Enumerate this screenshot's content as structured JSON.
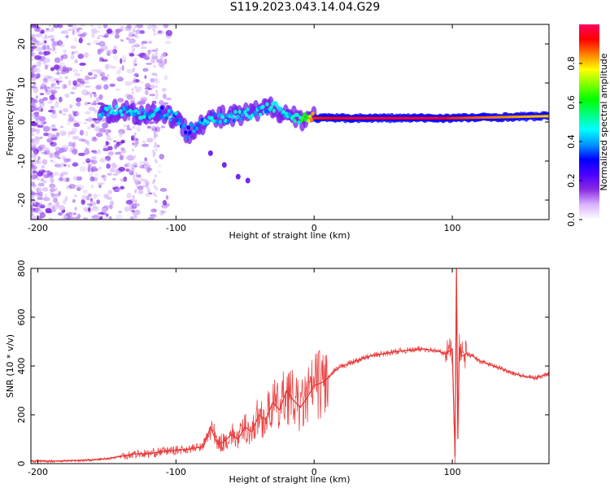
{
  "title": "S119.2023.043.14.04.G29",
  "chart_data": [
    {
      "type": "heatmap",
      "name": "spectrogram",
      "xlabel": "Height of straight line (km)",
      "ylabel": "Frequency (Hz)",
      "xlim": [
        -205,
        170
      ],
      "ylim": [
        -25,
        25
      ],
      "x_ticks": [
        -200,
        -100,
        0,
        100
      ],
      "y_ticks": [
        -20,
        -10,
        0,
        10,
        20
      ],
      "colorbar": {
        "label": "Normalized spectral amplitude",
        "range": [
          0.0,
          1.0
        ],
        "ticks": [
          0.0,
          0.2,
          0.4,
          0.6,
          0.8
        ],
        "colors": [
          "#ffffff",
          "#d9b3ff",
          "#8a2be2",
          "#4b00ff",
          "#0000ff",
          "#0096ff",
          "#00ffff",
          "#00ff7f",
          "#00ff00",
          "#80ff00",
          "#ffff00",
          "#ff8000",
          "#ff0000",
          "#ff0060"
        ]
      },
      "main_band": [
        {
          "x": -155,
          "f": 2.5,
          "amp": 0.5
        },
        {
          "x": -140,
          "f": 3.0,
          "amp": 0.5
        },
        {
          "x": -125,
          "f": 2.0,
          "amp": 0.5
        },
        {
          "x": -110,
          "f": 2.5,
          "amp": 0.45
        },
        {
          "x": -100,
          "f": 1.0,
          "amp": 0.45
        },
        {
          "x": -92,
          "f": -3.0,
          "amp": 0.4
        },
        {
          "x": -85,
          "f": -0.5,
          "amp": 0.45
        },
        {
          "x": -70,
          "f": 1.0,
          "amp": 0.5
        },
        {
          "x": -55,
          "f": 1.5,
          "amp": 0.5
        },
        {
          "x": -40,
          "f": 2.5,
          "amp": 0.5
        },
        {
          "x": -30,
          "f": 4.0,
          "amp": 0.5
        },
        {
          "x": -20,
          "f": 2.0,
          "amp": 0.5
        },
        {
          "x": -10,
          "f": 1.0,
          "amp": 0.6
        },
        {
          "x": 0,
          "f": 1.0,
          "amp": 0.9
        },
        {
          "x": 30,
          "f": 1.0,
          "amp": 0.95
        },
        {
          "x": 60,
          "f": 1.0,
          "amp": 0.95
        },
        {
          "x": 90,
          "f": 1.0,
          "amp": 0.95
        },
        {
          "x": 100,
          "f": 1.0,
          "amp": 0.9
        },
        {
          "x": 130,
          "f": 1.2,
          "amp": 0.85
        },
        {
          "x": 170,
          "f": 1.5,
          "amp": 0.8
        }
      ],
      "side_branch": [
        {
          "x": -75,
          "f": -8,
          "amp": 0.35
        },
        {
          "x": -65,
          "f": -11,
          "amp": 0.35
        },
        {
          "x": -55,
          "f": -14,
          "amp": 0.35
        },
        {
          "x": -48,
          "f": -15,
          "amp": 0.35
        }
      ]
    },
    {
      "type": "line",
      "name": "snr",
      "xlabel": "Height of straight line (km)",
      "ylabel": "SNR (10 * v/v)",
      "xlim": [
        -205,
        170
      ],
      "ylim": [
        0,
        800
      ],
      "x_ticks": [
        -200,
        -100,
        0,
        100
      ],
      "y_ticks": [
        0,
        200,
        400,
        600,
        800
      ],
      "color": "#e83232",
      "x": [
        -205,
        -190,
        -175,
        -160,
        -150,
        -140,
        -130,
        -120,
        -110,
        -100,
        -90,
        -80,
        -75,
        -70,
        -65,
        -60,
        -55,
        -50,
        -45,
        -40,
        -35,
        -30,
        -25,
        -20,
        -15,
        -10,
        -5,
        0,
        5,
        10,
        15,
        20,
        30,
        40,
        50,
        60,
        70,
        80,
        90,
        95,
        100,
        102,
        103,
        104,
        105,
        107,
        110,
        115,
        120,
        130,
        140,
        150,
        160,
        170
      ],
      "y": [
        10,
        10,
        12,
        15,
        20,
        30,
        40,
        40,
        50,
        55,
        60,
        70,
        150,
        80,
        90,
        120,
        100,
        150,
        130,
        200,
        180,
        250,
        220,
        300,
        260,
        230,
        270,
        320,
        330,
        350,
        380,
        400,
        420,
        440,
        450,
        460,
        465,
        470,
        460,
        450,
        470,
        30,
        800,
        100,
        480,
        440,
        450,
        440,
        420,
        400,
        380,
        360,
        350,
        370
      ]
    }
  ]
}
